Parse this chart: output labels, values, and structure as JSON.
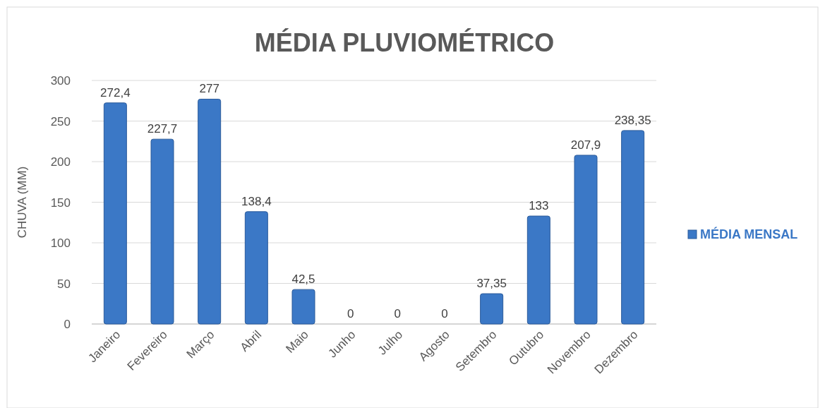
{
  "chart_data": {
    "type": "bar",
    "title": "MÉDIA PLUVIOMÉTRICO",
    "ylabel": "CHUVA (MM)",
    "categories": [
      "Janeiro",
      "Fevereiro",
      "Março",
      "Abril",
      "Maio",
      "Junho",
      "Julho",
      "Agosto",
      "Setembro",
      "Outubro",
      "Novembro",
      "Dezembro"
    ],
    "series": [
      {
        "name": "MÉDIA MENSAL",
        "color": "#3b78c6",
        "values": [
          272.4,
          227.7,
          277,
          138.4,
          42.5,
          0,
          0,
          0,
          37.35,
          133,
          207.9,
          238.35
        ],
        "value_labels": [
          "272,4",
          "227,7",
          "277",
          "138,4",
          "42,5",
          "0",
          "0",
          "0",
          "37,35",
          "133",
          "207,9",
          "238,35"
        ]
      }
    ],
    "ylim": [
      0,
      300
    ],
    "yticks": [
      0,
      50,
      100,
      150,
      200,
      250,
      300
    ],
    "grid": "y",
    "legend": "right"
  }
}
